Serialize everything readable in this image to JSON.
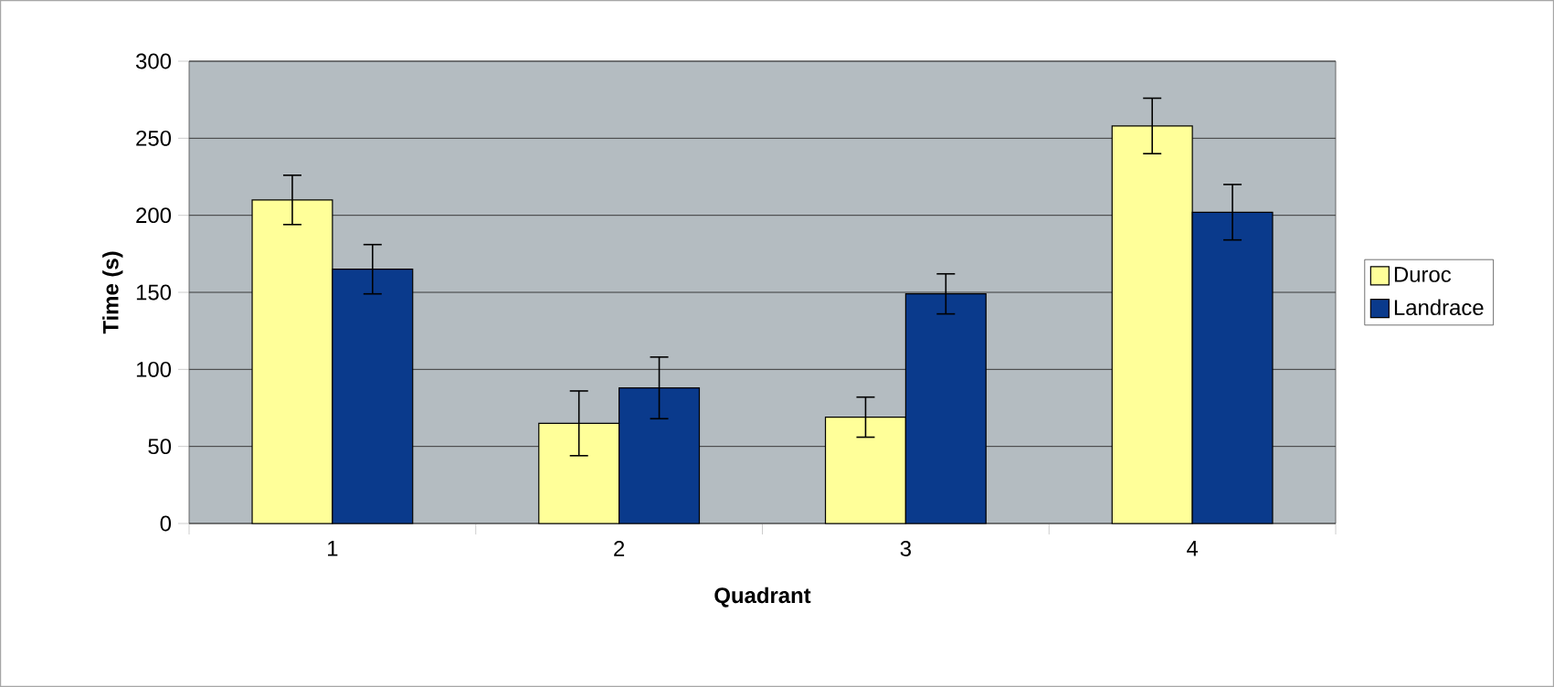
{
  "chart_data": {
    "type": "bar",
    "xlabel": "Quadrant",
    "ylabel": "Time (s)",
    "categories": [
      "1",
      "2",
      "3",
      "4"
    ],
    "series": [
      {
        "name": "Duroc",
        "color": "#ffff99",
        "values": [
          210,
          65,
          69,
          258
        ],
        "errors": [
          16,
          21,
          13,
          18
        ]
      },
      {
        "name": "Landrace",
        "color": "#0a3a8c",
        "values": [
          165,
          88,
          149,
          202
        ],
        "errors": [
          16,
          20,
          13,
          18
        ]
      }
    ],
    "ylim": [
      0,
      300
    ],
    "yticks": [
      0,
      50,
      100,
      150,
      200,
      250,
      300
    ],
    "grid": "y",
    "legend": "right"
  }
}
